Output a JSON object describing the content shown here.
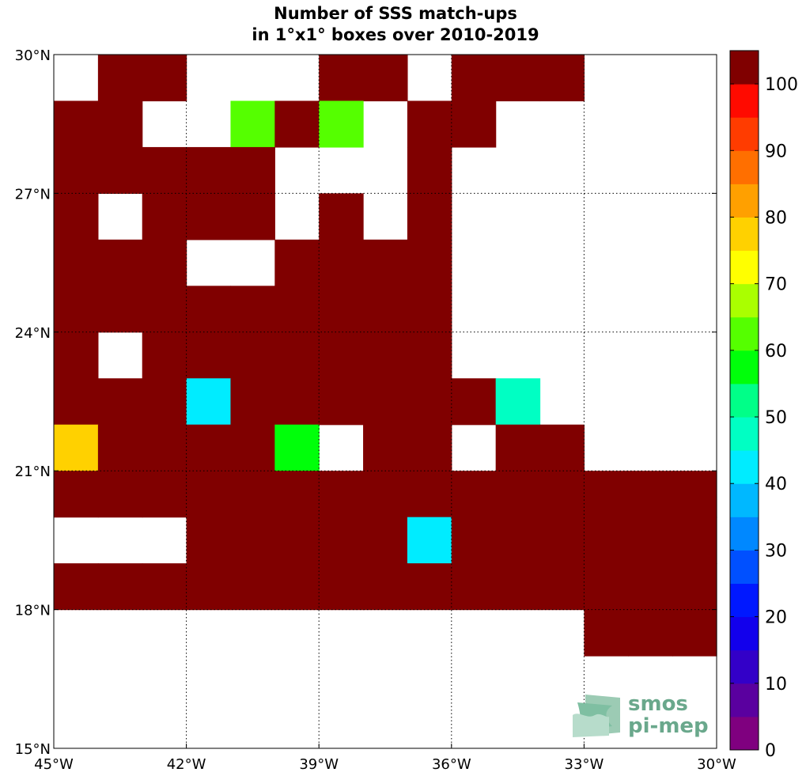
{
  "chart_data": {
    "type": "heatmap",
    "title": [
      "Number of SSS match-ups",
      "in 1°x1° boxes over 2010-2019"
    ],
    "x_range": [
      -45,
      -30
    ],
    "y_range": [
      15,
      30
    ],
    "x_ticks": [
      {
        "value": -45,
        "label": "45°W"
      },
      {
        "value": -42,
        "label": "42°W"
      },
      {
        "value": -39,
        "label": "39°W"
      },
      {
        "value": -36,
        "label": "36°W"
      },
      {
        "value": -33,
        "label": "33°W"
      },
      {
        "value": -30,
        "label": "30°W"
      }
    ],
    "y_ticks": [
      {
        "value": 15,
        "label": "15°N"
      },
      {
        "value": 18,
        "label": "18°N"
      },
      {
        "value": 21,
        "label": "21°N"
      },
      {
        "value": 24,
        "label": "24°N"
      },
      {
        "value": 27,
        "label": "27°N"
      },
      {
        "value": 30,
        "label": "30°N"
      }
    ],
    "grid": true,
    "grid_style": "dotted",
    "colorbar": {
      "min": 0,
      "max": 100,
      "step": 5,
      "tick_values": [
        0,
        10,
        20,
        30,
        40,
        50,
        60,
        70,
        80,
        90,
        100
      ],
      "tick_labels": [
        "0",
        "10",
        "20",
        "30",
        "40",
        "50",
        "60",
        "70",
        "80",
        "90",
        "100"
      ],
      "colors": [
        "#7f007f",
        "#5a009f",
        "#3300c8",
        "#1200ec",
        "#0018ff",
        "#0050ff",
        "#0088ff",
        "#00b8ff",
        "#00ecff",
        "#00ffc3",
        "#00ff88",
        "#00ff0a",
        "#55ff00",
        "#aaff00",
        "#ffff00",
        "#ffd100",
        "#ffa000",
        "#ff6f00",
        "#ff3c00",
        "#ff0a00",
        "#c80000"
      ],
      "over_color": "#800000"
    },
    "row_lats": [
      29.5,
      28.5,
      27.5,
      26.5,
      25.5,
      24.5,
      23.5,
      22.5,
      21.5,
      20.5,
      19.5,
      18.5,
      17.5,
      16.5,
      15.5
    ],
    "col_lons": [
      -44.5,
      -43.5,
      -42.5,
      -41.5,
      -40.5,
      -39.5,
      -38.5,
      -37.5,
      -36.5,
      -35.5,
      -34.5,
      -33.5,
      -32.5,
      -31.5,
      -30.5
    ],
    "values": [
      [
        null,
        100,
        100,
        null,
        null,
        null,
        100,
        100,
        null,
        100,
        100,
        100,
        null,
        null,
        null
      ],
      [
        100,
        100,
        null,
        null,
        62,
        100,
        62,
        null,
        100,
        100,
        null,
        null,
        null,
        null,
        null
      ],
      [
        100,
        100,
        100,
        100,
        100,
        null,
        null,
        null,
        100,
        null,
        null,
        null,
        null,
        null,
        null
      ],
      [
        100,
        null,
        100,
        100,
        100,
        null,
        100,
        null,
        100,
        null,
        null,
        null,
        null,
        null,
        null
      ],
      [
        100,
        100,
        100,
        null,
        null,
        100,
        100,
        100,
        100,
        null,
        null,
        null,
        null,
        null,
        null
      ],
      [
        100,
        100,
        100,
        100,
        100,
        100,
        100,
        100,
        100,
        null,
        null,
        null,
        null,
        null,
        null
      ],
      [
        100,
        null,
        100,
        100,
        100,
        100,
        100,
        100,
        100,
        null,
        null,
        null,
        null,
        null,
        null
      ],
      [
        100,
        100,
        100,
        42,
        100,
        100,
        100,
        100,
        100,
        100,
        48,
        null,
        null,
        null,
        null
      ],
      [
        77,
        100,
        100,
        100,
        100,
        57,
        null,
        100,
        100,
        null,
        100,
        100,
        null,
        null,
        null
      ],
      [
        100,
        100,
        100,
        100,
        100,
        100,
        100,
        100,
        100,
        100,
        100,
        100,
        100,
        100,
        100
      ],
      [
        null,
        null,
        null,
        100,
        100,
        100,
        100,
        100,
        42,
        100,
        100,
        100,
        100,
        100,
        100
      ],
      [
        100,
        100,
        100,
        100,
        100,
        100,
        100,
        100,
        100,
        100,
        100,
        100,
        100,
        100,
        100
      ],
      [
        null,
        null,
        null,
        null,
        null,
        null,
        null,
        null,
        null,
        null,
        null,
        null,
        100,
        100,
        100
      ],
      [
        null,
        null,
        null,
        null,
        null,
        null,
        null,
        null,
        null,
        null,
        null,
        null,
        null,
        null,
        null
      ],
      [
        null,
        null,
        null,
        null,
        null,
        null,
        null,
        null,
        null,
        null,
        null,
        null,
        null,
        null,
        null
      ]
    ]
  },
  "logo": {
    "line1": "smos",
    "line2": "pi-mep",
    "color": "#6aa88c"
  }
}
